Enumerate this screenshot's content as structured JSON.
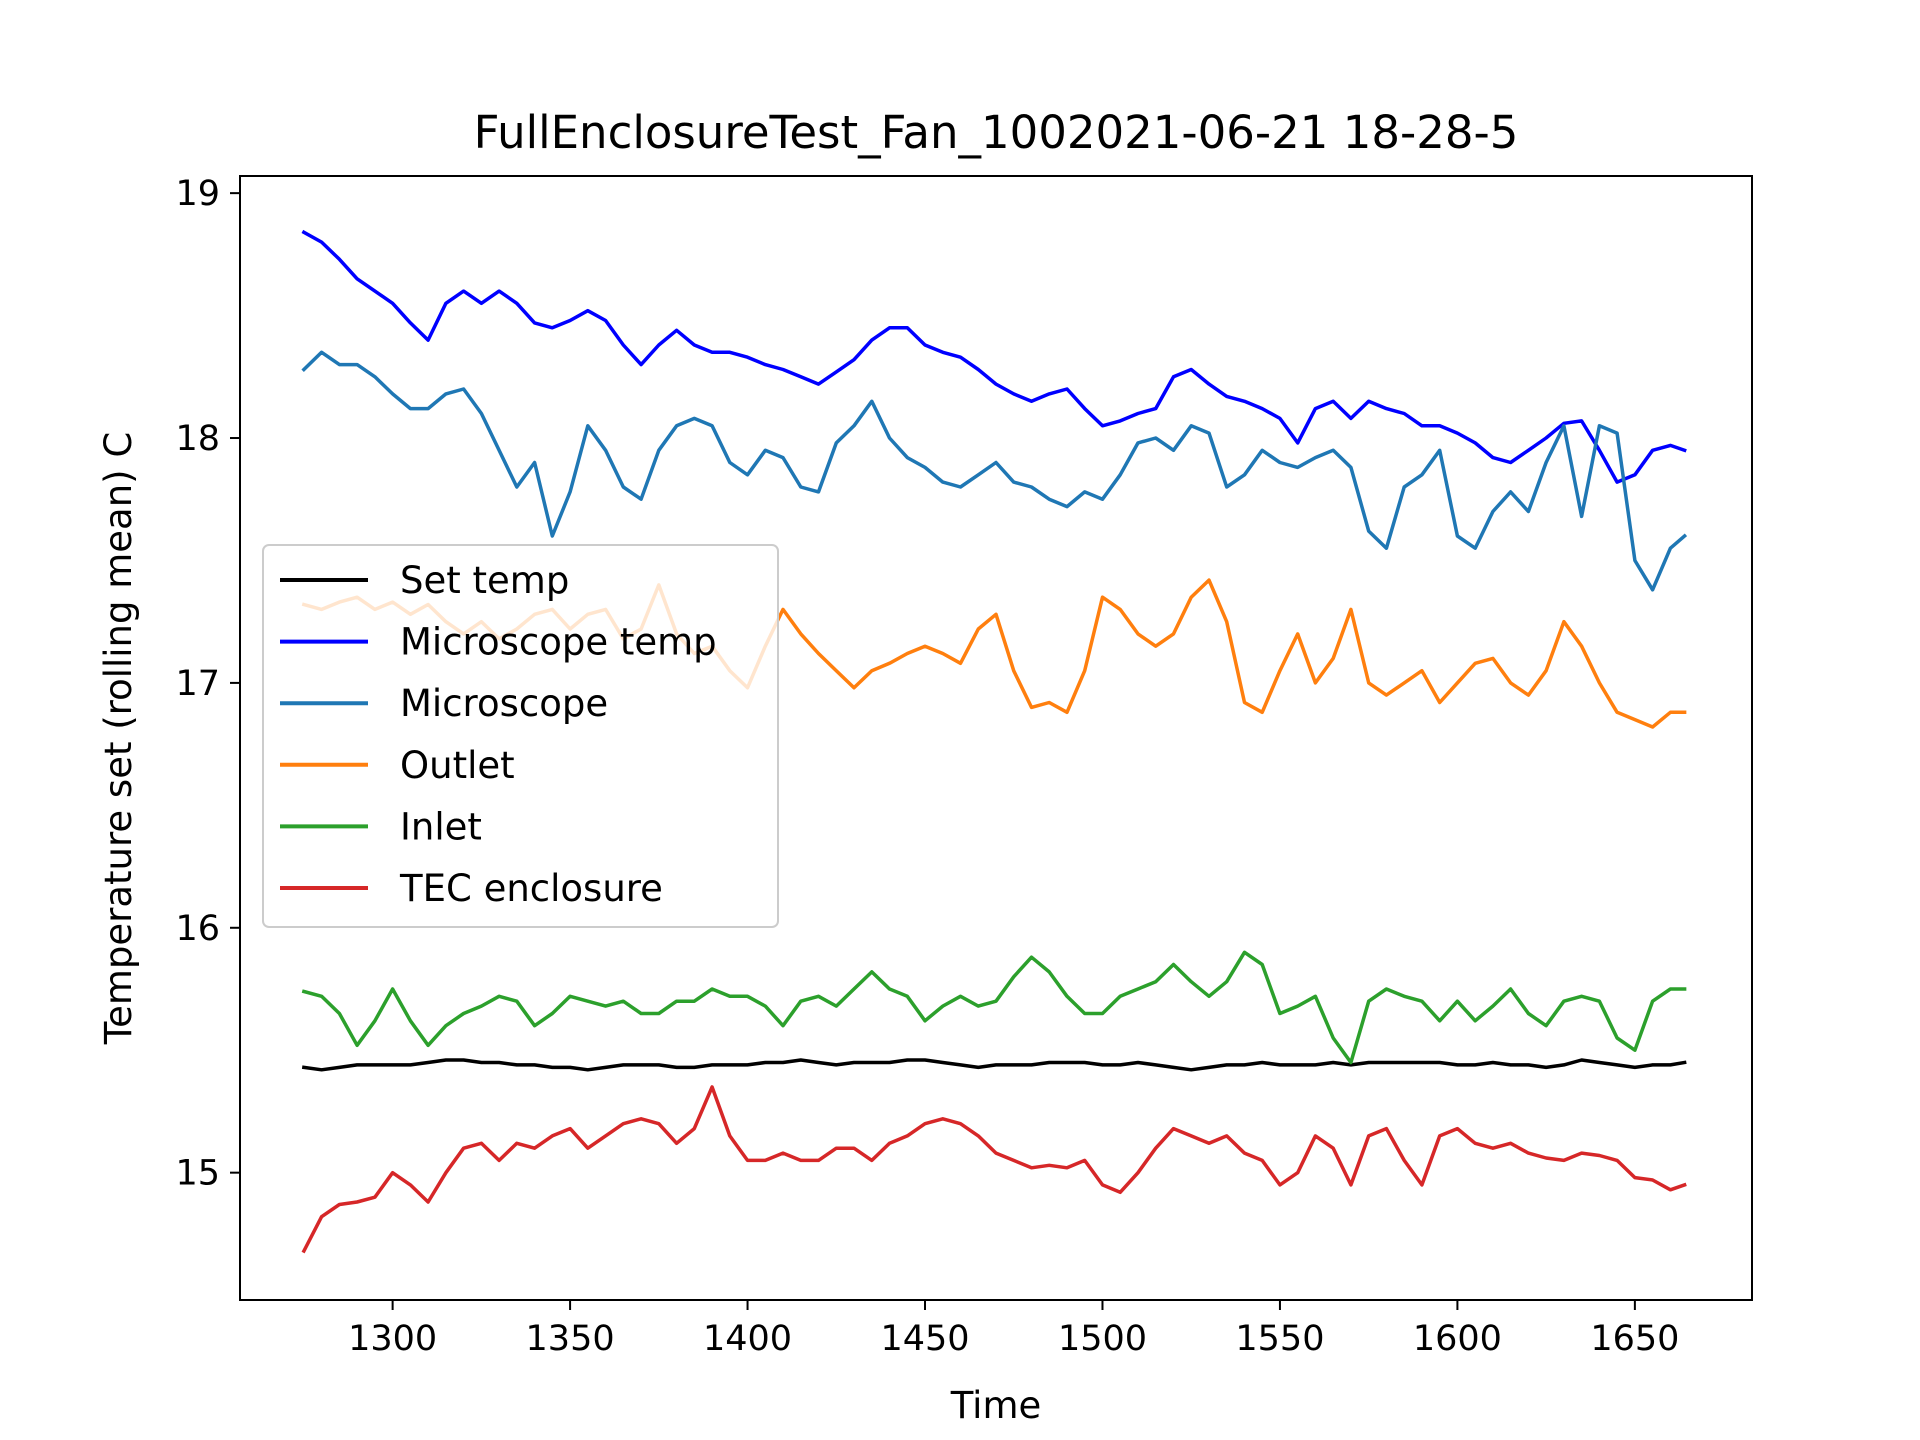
{
  "chart_data": {
    "type": "line",
    "title": "FullEnclosureTest_Fan_1002021-06-21 18-28-5",
    "xlabel": "Time",
    "ylabel": "Temperature set (rolling mean) C",
    "xlim": [
      1257,
      1683
    ],
    "ylim": [
      14.48,
      19.07
    ],
    "xticks": [
      1300,
      1350,
      1400,
      1450,
      1500,
      1550,
      1600,
      1650
    ],
    "yticks": [
      15,
      16,
      17,
      18,
      19
    ],
    "grid": false,
    "legend_position": "center-left",
    "x": [
      1275,
      1280,
      1285,
      1290,
      1295,
      1300,
      1305,
      1310,
      1315,
      1320,
      1325,
      1330,
      1335,
      1340,
      1345,
      1350,
      1355,
      1360,
      1365,
      1370,
      1375,
      1380,
      1385,
      1390,
      1395,
      1400,
      1405,
      1410,
      1415,
      1420,
      1425,
      1430,
      1435,
      1440,
      1445,
      1450,
      1455,
      1460,
      1465,
      1470,
      1475,
      1480,
      1485,
      1490,
      1495,
      1500,
      1505,
      1510,
      1515,
      1520,
      1525,
      1530,
      1535,
      1540,
      1545,
      1550,
      1555,
      1560,
      1565,
      1570,
      1575,
      1580,
      1585,
      1590,
      1595,
      1600,
      1605,
      1610,
      1615,
      1620,
      1625,
      1630,
      1635,
      1640,
      1645,
      1650,
      1655,
      1660,
      1664
    ],
    "series": [
      {
        "name": "Set temp",
        "color": "#000000",
        "values": [
          15.43,
          15.42,
          15.43,
          15.44,
          15.44,
          15.44,
          15.44,
          15.45,
          15.46,
          15.46,
          15.45,
          15.45,
          15.44,
          15.44,
          15.43,
          15.43,
          15.42,
          15.43,
          15.44,
          15.44,
          15.44,
          15.43,
          15.43,
          15.44,
          15.44,
          15.44,
          15.45,
          15.45,
          15.46,
          15.45,
          15.44,
          15.45,
          15.45,
          15.45,
          15.46,
          15.46,
          15.45,
          15.44,
          15.43,
          15.44,
          15.44,
          15.44,
          15.45,
          15.45,
          15.45,
          15.44,
          15.44,
          15.45,
          15.44,
          15.43,
          15.42,
          15.43,
          15.44,
          15.44,
          15.45,
          15.44,
          15.44,
          15.44,
          15.45,
          15.44,
          15.45,
          15.45,
          15.45,
          15.45,
          15.45,
          15.44,
          15.44,
          15.45,
          15.44,
          15.44,
          15.43,
          15.44,
          15.46,
          15.45,
          15.44,
          15.43,
          15.44,
          15.44,
          15.45
        ]
      },
      {
        "name": "Microscope temp",
        "color": "#0000ff",
        "values": [
          18.84,
          18.8,
          18.73,
          18.65,
          18.6,
          18.55,
          18.47,
          18.4,
          18.55,
          18.6,
          18.55,
          18.6,
          18.55,
          18.47,
          18.45,
          18.48,
          18.52,
          18.48,
          18.38,
          18.3,
          18.38,
          18.44,
          18.38,
          18.35,
          18.35,
          18.33,
          18.3,
          18.28,
          18.25,
          18.22,
          18.27,
          18.32,
          18.4,
          18.45,
          18.45,
          18.38,
          18.35,
          18.33,
          18.28,
          18.22,
          18.18,
          18.15,
          18.18,
          18.2,
          18.12,
          18.05,
          18.07,
          18.1,
          18.12,
          18.25,
          18.28,
          18.22,
          18.17,
          18.15,
          18.12,
          18.08,
          17.98,
          18.12,
          18.15,
          18.08,
          18.15,
          18.12,
          18.1,
          18.05,
          18.05,
          18.02,
          17.98,
          17.92,
          17.9,
          17.95,
          18.0,
          18.06,
          18.07,
          17.95,
          17.82,
          17.85,
          17.95,
          17.97,
          17.95
        ]
      },
      {
        "name": "Microscope",
        "color": "#1f77b4",
        "values": [
          18.28,
          18.35,
          18.3,
          18.3,
          18.25,
          18.18,
          18.12,
          18.12,
          18.18,
          18.2,
          18.1,
          17.95,
          17.8,
          17.9,
          17.6,
          17.78,
          18.05,
          17.95,
          17.8,
          17.75,
          17.95,
          18.05,
          18.08,
          18.05,
          17.9,
          17.85,
          17.95,
          17.92,
          17.8,
          17.78,
          17.98,
          18.05,
          18.15,
          18.0,
          17.92,
          17.88,
          17.82,
          17.8,
          17.85,
          17.9,
          17.82,
          17.8,
          17.75,
          17.72,
          17.78,
          17.75,
          17.85,
          17.98,
          18.0,
          17.95,
          18.05,
          18.02,
          17.8,
          17.85,
          17.95,
          17.9,
          17.88,
          17.92,
          17.95,
          17.88,
          17.62,
          17.55,
          17.8,
          17.85,
          17.95,
          17.6,
          17.55,
          17.7,
          17.78,
          17.7,
          17.9,
          18.05,
          17.68,
          18.05,
          18.02,
          17.5,
          17.38,
          17.55,
          17.6
        ]
      },
      {
        "name": "Outlet",
        "color": "#ff7f0e",
        "values": [
          17.32,
          17.3,
          17.33,
          17.35,
          17.3,
          17.33,
          17.28,
          17.32,
          17.25,
          17.2,
          17.25,
          17.18,
          17.22,
          17.28,
          17.3,
          17.22,
          17.28,
          17.3,
          17.18,
          17.22,
          17.4,
          17.2,
          17.12,
          17.15,
          17.05,
          16.98,
          17.15,
          17.3,
          17.2,
          17.12,
          17.05,
          16.98,
          17.05,
          17.08,
          17.12,
          17.15,
          17.12,
          17.08,
          17.22,
          17.28,
          17.05,
          16.9,
          16.92,
          16.88,
          17.05,
          17.35,
          17.3,
          17.2,
          17.15,
          17.2,
          17.35,
          17.42,
          17.25,
          16.92,
          16.88,
          17.05,
          17.2,
          17.0,
          17.1,
          17.3,
          17.0,
          16.95,
          17.0,
          17.05,
          16.92,
          17.0,
          17.08,
          17.1,
          17.0,
          16.95,
          17.05,
          17.25,
          17.15,
          17.0,
          16.88,
          16.85,
          16.82,
          16.88,
          16.88
        ]
      },
      {
        "name": "Inlet",
        "color": "#2ca02c",
        "values": [
          15.74,
          15.72,
          15.65,
          15.52,
          15.62,
          15.75,
          15.62,
          15.52,
          15.6,
          15.65,
          15.68,
          15.72,
          15.7,
          15.6,
          15.65,
          15.72,
          15.7,
          15.68,
          15.7,
          15.65,
          15.65,
          15.7,
          15.7,
          15.75,
          15.72,
          15.72,
          15.68,
          15.6,
          15.7,
          15.72,
          15.68,
          15.75,
          15.82,
          15.75,
          15.72,
          15.62,
          15.68,
          15.72,
          15.68,
          15.7,
          15.8,
          15.88,
          15.82,
          15.72,
          15.65,
          15.65,
          15.72,
          15.75,
          15.78,
          15.85,
          15.78,
          15.72,
          15.78,
          15.9,
          15.85,
          15.65,
          15.68,
          15.72,
          15.55,
          15.45,
          15.7,
          15.75,
          15.72,
          15.7,
          15.62,
          15.7,
          15.62,
          15.68,
          15.75,
          15.65,
          15.6,
          15.7,
          15.72,
          15.7,
          15.55,
          15.5,
          15.7,
          15.75,
          15.75
        ]
      },
      {
        "name": "TEC enclosure",
        "color": "#d62728",
        "values": [
          14.68,
          14.82,
          14.87,
          14.88,
          14.9,
          15.0,
          14.95,
          14.88,
          15.0,
          15.1,
          15.12,
          15.05,
          15.12,
          15.1,
          15.15,
          15.18,
          15.1,
          15.15,
          15.2,
          15.22,
          15.2,
          15.12,
          15.18,
          15.35,
          15.15,
          15.05,
          15.05,
          15.08,
          15.05,
          15.05,
          15.1,
          15.1,
          15.05,
          15.12,
          15.15,
          15.2,
          15.22,
          15.2,
          15.15,
          15.08,
          15.05,
          15.02,
          15.03,
          15.02,
          15.05,
          14.95,
          14.92,
          15.0,
          15.1,
          15.18,
          15.15,
          15.12,
          15.15,
          15.08,
          15.05,
          14.95,
          15.0,
          15.15,
          15.1,
          14.95,
          15.15,
          15.18,
          15.05,
          14.95,
          15.15,
          15.18,
          15.12,
          15.1,
          15.12,
          15.08,
          15.06,
          15.05,
          15.08,
          15.07,
          15.05,
          14.98,
          14.97,
          14.93,
          14.95
        ]
      }
    ]
  }
}
